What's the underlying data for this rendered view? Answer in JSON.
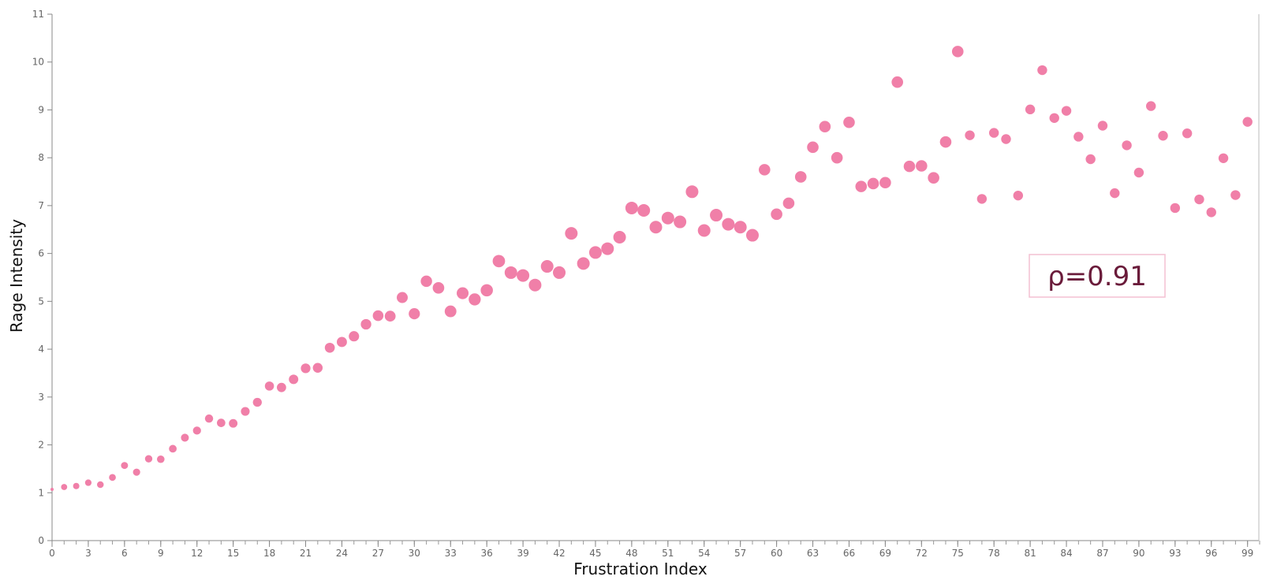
{
  "chart_data": {
    "type": "scatter",
    "xlabel": "Frustration Index",
    "ylabel": "Rage Intensity",
    "xlim": [
      0,
      100
    ],
    "ylim": [
      0,
      11
    ],
    "x_ticks": [
      "0",
      "3",
      "6",
      "9",
      "12",
      "15",
      "18",
      "21",
      "24",
      "27",
      "30",
      "33",
      "36",
      "39",
      "42",
      "45",
      "48",
      "51",
      "54",
      "57",
      "60",
      "63",
      "66",
      "69",
      "72",
      "75",
      "78",
      "81",
      "84",
      "87",
      "90",
      "93",
      "96",
      "99"
    ],
    "y_ticks": [
      "0",
      "1",
      "2",
      "3",
      "4",
      "5",
      "6",
      "7",
      "8",
      "9",
      "10",
      "11"
    ],
    "annotation": "ρ=0.91",
    "marker_color": "#f07fa8",
    "grid": false,
    "points": [
      {
        "x": 0,
        "y": 1.07
      },
      {
        "x": 1,
        "y": 1.12
      },
      {
        "x": 2,
        "y": 1.14
      },
      {
        "x": 3,
        "y": 1.21
      },
      {
        "x": 4,
        "y": 1.17
      },
      {
        "x": 5,
        "y": 1.32
      },
      {
        "x": 6,
        "y": 1.57
      },
      {
        "x": 7,
        "y": 1.43
      },
      {
        "x": 8,
        "y": 1.71
      },
      {
        "x": 9,
        "y": 1.7
      },
      {
        "x": 10,
        "y": 1.92
      },
      {
        "x": 11,
        "y": 2.15
      },
      {
        "x": 12,
        "y": 2.3
      },
      {
        "x": 13,
        "y": 2.55
      },
      {
        "x": 14,
        "y": 2.46
      },
      {
        "x": 15,
        "y": 2.45
      },
      {
        "x": 16,
        "y": 2.7
      },
      {
        "x": 17,
        "y": 2.89
      },
      {
        "x": 18,
        "y": 3.23
      },
      {
        "x": 19,
        "y": 3.2
      },
      {
        "x": 20,
        "y": 3.37
      },
      {
        "x": 21,
        "y": 3.6
      },
      {
        "x": 22,
        "y": 3.61
      },
      {
        "x": 23,
        "y": 4.03
      },
      {
        "x": 24,
        "y": 4.15
      },
      {
        "x": 25,
        "y": 4.27
      },
      {
        "x": 26,
        "y": 4.52
      },
      {
        "x": 27,
        "y": 4.7
      },
      {
        "x": 28,
        "y": 4.69
      },
      {
        "x": 29,
        "y": 5.08
      },
      {
        "x": 30,
        "y": 4.74
      },
      {
        "x": 31,
        "y": 5.42
      },
      {
        "x": 32,
        "y": 5.28
      },
      {
        "x": 33,
        "y": 4.79
      },
      {
        "x": 34,
        "y": 5.17
      },
      {
        "x": 35,
        "y": 5.04
      },
      {
        "x": 36,
        "y": 5.23
      },
      {
        "x": 37,
        "y": 5.84
      },
      {
        "x": 38,
        "y": 5.6
      },
      {
        "x": 39,
        "y": 5.54
      },
      {
        "x": 40,
        "y": 5.34
      },
      {
        "x": 41,
        "y": 5.73
      },
      {
        "x": 42,
        "y": 5.6
      },
      {
        "x": 43,
        "y": 6.42
      },
      {
        "x": 44,
        "y": 5.79
      },
      {
        "x": 45,
        "y": 6.02
      },
      {
        "x": 46,
        "y": 6.1
      },
      {
        "x": 47,
        "y": 6.34
      },
      {
        "x": 48,
        "y": 6.95
      },
      {
        "x": 49,
        "y": 6.9
      },
      {
        "x": 50,
        "y": 6.55
      },
      {
        "x": 51,
        "y": 6.74
      },
      {
        "x": 52,
        "y": 6.66
      },
      {
        "x": 53,
        "y": 7.29
      },
      {
        "x": 54,
        "y": 6.48
      },
      {
        "x": 55,
        "y": 6.8
      },
      {
        "x": 56,
        "y": 6.61
      },
      {
        "x": 57,
        "y": 6.55
      },
      {
        "x": 58,
        "y": 6.38
      },
      {
        "x": 59,
        "y": 7.75
      },
      {
        "x": 60,
        "y": 6.82
      },
      {
        "x": 61,
        "y": 7.05
      },
      {
        "x": 62,
        "y": 7.6
      },
      {
        "x": 63,
        "y": 8.22
      },
      {
        "x": 64,
        "y": 8.65
      },
      {
        "x": 65,
        "y": 8.0
      },
      {
        "x": 66,
        "y": 8.74
      },
      {
        "x": 67,
        "y": 7.4
      },
      {
        "x": 68,
        "y": 7.46
      },
      {
        "x": 69,
        "y": 7.48
      },
      {
        "x": 70,
        "y": 9.58
      },
      {
        "x": 71,
        "y": 7.82
      },
      {
        "x": 72,
        "y": 7.83
      },
      {
        "x": 73,
        "y": 7.58
      },
      {
        "x": 74,
        "y": 8.33
      },
      {
        "x": 75,
        "y": 10.22
      },
      {
        "x": 76,
        "y": 8.47
      },
      {
        "x": 77,
        "y": 7.14
      },
      {
        "x": 78,
        "y": 8.52
      },
      {
        "x": 79,
        "y": 8.39
      },
      {
        "x": 80,
        "y": 7.21
      },
      {
        "x": 81,
        "y": 9.01
      },
      {
        "x": 82,
        "y": 9.83
      },
      {
        "x": 83,
        "y": 8.83
      },
      {
        "x": 84,
        "y": 8.98
      },
      {
        "x": 85,
        "y": 8.44
      },
      {
        "x": 86,
        "y": 7.97
      },
      {
        "x": 87,
        "y": 8.67
      },
      {
        "x": 88,
        "y": 7.26
      },
      {
        "x": 89,
        "y": 8.26
      },
      {
        "x": 90,
        "y": 7.69
      },
      {
        "x": 91,
        "y": 9.08
      },
      {
        "x": 92,
        "y": 8.46
      },
      {
        "x": 93,
        "y": 6.95
      },
      {
        "x": 94,
        "y": 8.51
      },
      {
        "x": 95,
        "y": 7.13
      },
      {
        "x": 96,
        "y": 6.86
      },
      {
        "x": 97,
        "y": 7.99
      },
      {
        "x": 98,
        "y": 7.22
      },
      {
        "x": 99,
        "y": 8.75
      }
    ]
  }
}
